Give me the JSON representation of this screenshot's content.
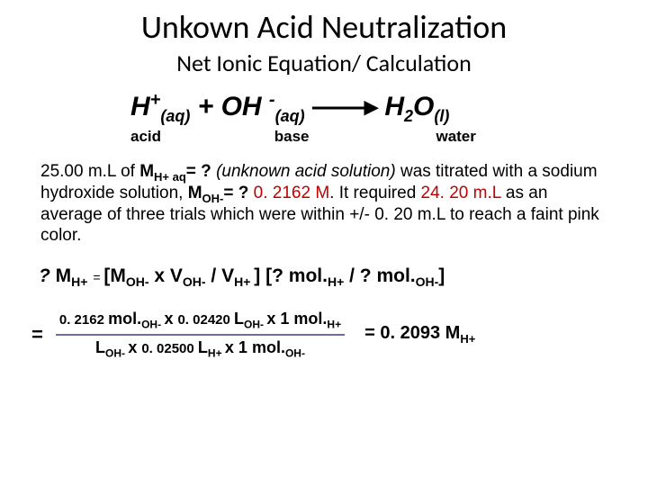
{
  "title": "Unkown Acid Neutralization",
  "subtitle": "Net Ionic Equation/ Calculation",
  "equation": {
    "h": "H",
    "plus": "+",
    "aq": "(aq)",
    "add": " + ",
    "oh": "OH ",
    "minus": "-",
    "arrow": "——▸",
    "h2o_h": " H",
    "h2o_2": "2",
    "h2o_o": "O",
    "liq": "(l)"
  },
  "labels": {
    "acid": "acid",
    "base": "base",
    "water": "water"
  },
  "problem": {
    "t1": "25.00 m.L of ",
    "t2": "M",
    "t3_sub": "H+ aq",
    "t4": "= ? ",
    "t5": "(unknown acid solution)",
    "t6": " was titrated with a sodium hydroxide solution, ",
    "t7": "M",
    "t8_sub": "OH-",
    "t9": "= ? ",
    "t10": "0. 2162 M",
    "t11": ". It required ",
    "t12": "24. 20 m.L",
    "t13": " as an average of three trials which were within +/- 0. 20 m.L to reach a faint pink color."
  },
  "formula": {
    "q": "? ",
    "m": "M",
    "sub_h": "H+",
    "eq": " = ",
    "open": "[",
    "m2": "M",
    "sub_oh": "OH-",
    "mul1": " x V",
    "slash": " / V",
    "sub_h2": "H+ ",
    "close": "] [",
    "q2": "? mol.",
    "slash2": " / ",
    "q3": "? mol.",
    "close2": "]"
  },
  "calc": {
    "eq_left": "=",
    "num": {
      "v1": "0. 2162 ",
      "u1": "mol.",
      "sub_oh": "OH- ",
      "x1": "x ",
      "v2": "0. 02420 ",
      "u2": "L",
      "x2": " x 1 ",
      "u3": "mol.",
      "sub_h": "H+"
    },
    "den": {
      "u1": "L",
      "sub_oh": "OH- ",
      "x1": "x ",
      "v1": "0. 02500 ",
      "u2": "L",
      "sub_h": "H+ ",
      "x2": "x  1 ",
      "u3": "mol.",
      "sub_oh2": "OH-"
    },
    "result": {
      "eq": "=  ",
      "val": "0. 2093 ",
      "m": "M",
      "sub": "H+"
    }
  },
  "colors": {
    "red": "#c00000",
    "fraction_bar": "#6e6e9c",
    "text": "#000000",
    "background": "#ffffff"
  },
  "typography": {
    "title_family": "Calibri",
    "body_family": "Arial",
    "title_size_pt": 36,
    "subtitle_size_pt": 26,
    "equation_size_pt": 30,
    "label_size_pt": 17,
    "problem_size_pt": 19,
    "formula_size_pt": 21,
    "calc_size_pt": 18
  }
}
